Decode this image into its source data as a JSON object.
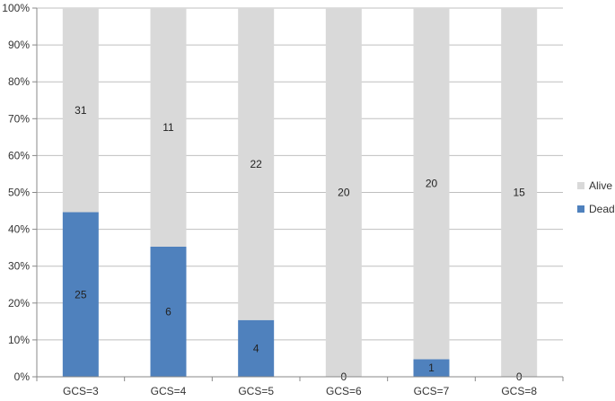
{
  "chart_data": {
    "type": "bar",
    "stacked": "percent",
    "categories": [
      "GCS=3",
      "GCS=4",
      "GCS=5",
      "GCS=6",
      "GCS=7",
      "GCS=8"
    ],
    "series": [
      {
        "name": "Dead",
        "values": [
          25,
          6,
          4,
          0,
          1,
          0
        ],
        "color": "#4F81BD"
      },
      {
        "name": "Alive",
        "values": [
          31,
          11,
          22,
          20,
          20,
          15
        ],
        "color": "#D9D9D9"
      }
    ],
    "y_ticks": [
      "0%",
      "10%",
      "20%",
      "30%",
      "40%",
      "50%",
      "60%",
      "70%",
      "80%",
      "90%",
      "100%"
    ],
    "ylim": [
      0,
      100
    ],
    "grid": true,
    "legend_position": "right",
    "legend": [
      "Alive",
      "Dead"
    ]
  }
}
